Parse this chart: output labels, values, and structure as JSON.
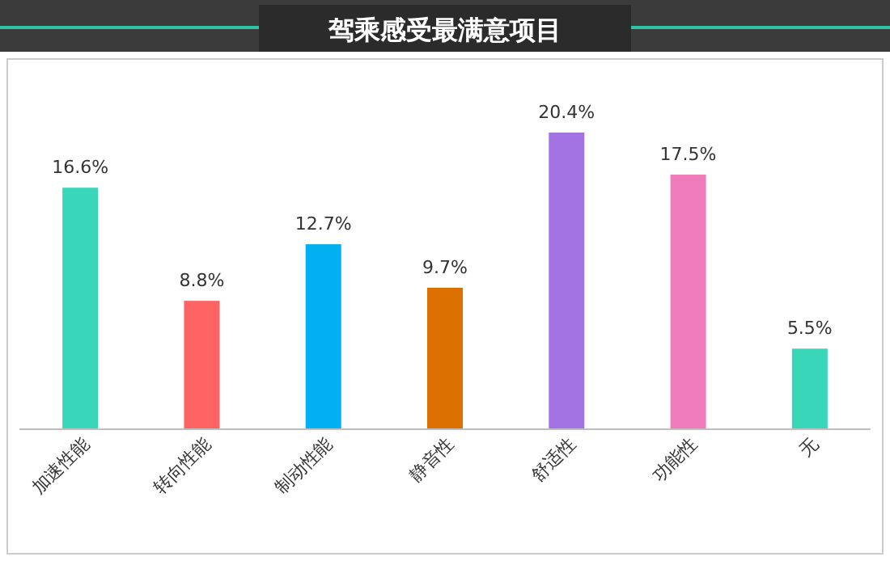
{
  "chart_data": {
    "type": "bar",
    "title": "驾乘感受最满意项目",
    "categories": [
      "加速性能",
      "转向性能",
      "制动性能",
      "静音性",
      "舒适性",
      "功能性",
      "无"
    ],
    "values": [
      16.6,
      8.8,
      12.7,
      9.7,
      20.4,
      17.5,
      5.5
    ],
    "colors": [
      "#3ad6b9",
      "#ff6464",
      "#00b0f0",
      "#dc7000",
      "#a373e3",
      "#ef7bba",
      "#3ad6b9"
    ],
    "value_labels": [
      "16.6%",
      "8.8%",
      "12.7%",
      "9.7%",
      "20.4%",
      "17.5%",
      "5.5%"
    ]
  }
}
